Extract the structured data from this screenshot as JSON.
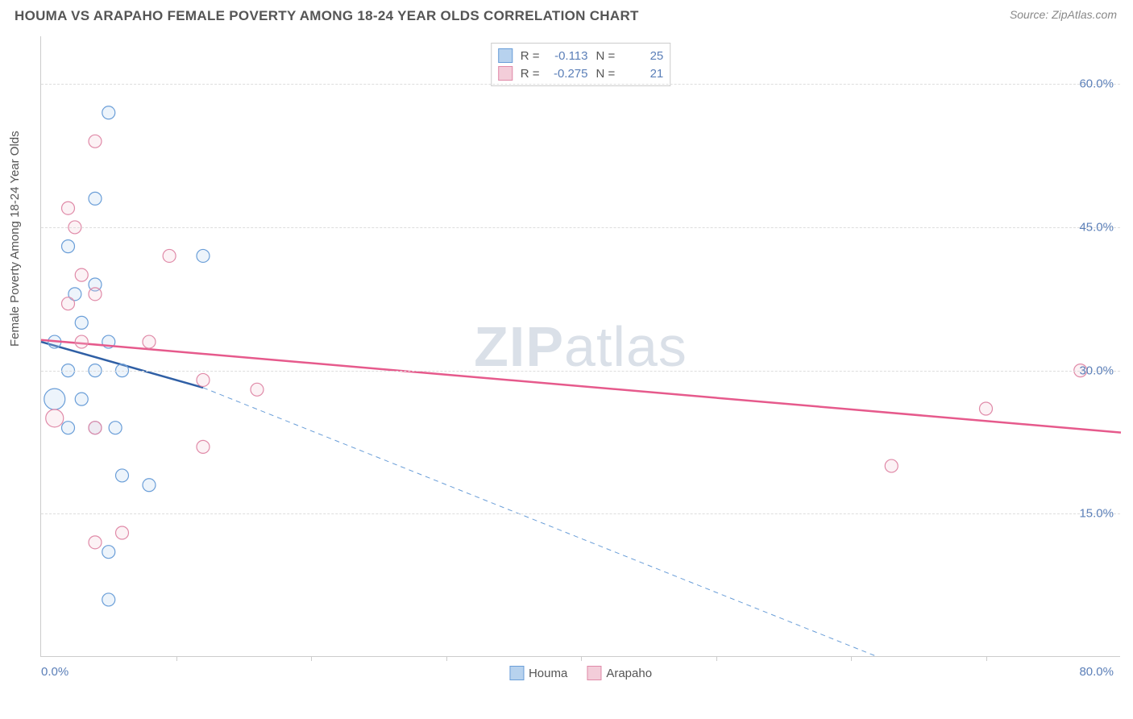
{
  "title": "HOUMA VS ARAPAHO FEMALE POVERTY AMONG 18-24 YEAR OLDS CORRELATION CHART",
  "source": "Source: ZipAtlas.com",
  "watermark_bold": "ZIP",
  "watermark_light": "atlas",
  "ylabel": "Female Poverty Among 18-24 Year Olds",
  "chart": {
    "type": "scatter",
    "xlim": [
      0,
      80
    ],
    "ylim": [
      0,
      65
    ],
    "x_start_label": "0.0%",
    "x_end_label": "80.0%",
    "x_tick_positions": [
      10,
      20,
      30,
      40,
      50,
      60,
      70
    ],
    "y_ticks": [
      15.0,
      30.0,
      45.0,
      60.0
    ],
    "y_tick_labels": [
      "15.0%",
      "30.0%",
      "45.0%",
      "60.0%"
    ],
    "y_grid_label_fontsize": 15,
    "label_fontsize": 15,
    "background_color": "#ffffff",
    "grid_color": "#dddddd",
    "axis_color": "#cccccc",
    "tick_color": "#5b7fb8",
    "marker_radius": 8,
    "marker_stroke_width": 1.2,
    "marker_fill_opacity": 0.25,
    "series": [
      {
        "name": "Houma",
        "color_stroke": "#6a9ed8",
        "color_fill": "#b7d2ee",
        "R": "-0.113",
        "N": "25",
        "trend_solid": {
          "x1": 0,
          "y1": 33.0,
          "x2": 12,
          "y2": 28.2,
          "width": 2.5,
          "color": "#2f5fa5"
        },
        "trend_dashed": {
          "x1": 12,
          "y1": 28.2,
          "x2": 62,
          "y2": 0,
          "width": 1,
          "color": "#6a9ed8",
          "dash": "6,5"
        },
        "points": [
          {
            "x": 5,
            "y": 57,
            "r": 8
          },
          {
            "x": 4,
            "y": 48,
            "r": 8
          },
          {
            "x": 2,
            "y": 43,
            "r": 8
          },
          {
            "x": 12,
            "y": 42,
            "r": 8
          },
          {
            "x": 4,
            "y": 39,
            "r": 8
          },
          {
            "x": 2.5,
            "y": 38,
            "r": 8
          },
          {
            "x": 3,
            "y": 35,
            "r": 8
          },
          {
            "x": 1,
            "y": 33,
            "r": 8
          },
          {
            "x": 5,
            "y": 33,
            "r": 8
          },
          {
            "x": 2,
            "y": 30,
            "r": 8
          },
          {
            "x": 4,
            "y": 30,
            "r": 8
          },
          {
            "x": 6,
            "y": 30,
            "r": 8
          },
          {
            "x": 1,
            "y": 27,
            "r": 13
          },
          {
            "x": 3,
            "y": 27,
            "r": 8
          },
          {
            "x": 2,
            "y": 24,
            "r": 8
          },
          {
            "x": 4,
            "y": 24,
            "r": 8
          },
          {
            "x": 5.5,
            "y": 24,
            "r": 8
          },
          {
            "x": 6,
            "y": 19,
            "r": 8
          },
          {
            "x": 8,
            "y": 18,
            "r": 8
          },
          {
            "x": 5,
            "y": 11,
            "r": 8
          },
          {
            "x": 5,
            "y": 6,
            "r": 8
          }
        ]
      },
      {
        "name": "Arapaho",
        "color_stroke": "#e08aa8",
        "color_fill": "#f3cdd9",
        "R": "-0.275",
        "N": "21",
        "trend_solid": {
          "x1": 0,
          "y1": 33.2,
          "x2": 80,
          "y2": 23.5,
          "width": 2.5,
          "color": "#e65a8c"
        },
        "trend_dashed": null,
        "points": [
          {
            "x": 4,
            "y": 54,
            "r": 8
          },
          {
            "x": 2,
            "y": 47,
            "r": 8
          },
          {
            "x": 2.5,
            "y": 45,
            "r": 8
          },
          {
            "x": 9.5,
            "y": 42,
            "r": 8
          },
          {
            "x": 3,
            "y": 40,
            "r": 8
          },
          {
            "x": 4,
            "y": 38,
            "r": 8
          },
          {
            "x": 2,
            "y": 37,
            "r": 8
          },
          {
            "x": 3,
            "y": 33,
            "r": 8
          },
          {
            "x": 8,
            "y": 33,
            "r": 8
          },
          {
            "x": 12,
            "y": 29,
            "r": 8
          },
          {
            "x": 16,
            "y": 28,
            "r": 8
          },
          {
            "x": 1,
            "y": 25,
            "r": 11
          },
          {
            "x": 4,
            "y": 24,
            "r": 8
          },
          {
            "x": 12,
            "y": 22,
            "r": 8
          },
          {
            "x": 77,
            "y": 30,
            "r": 8
          },
          {
            "x": 70,
            "y": 26,
            "r": 8
          },
          {
            "x": 63,
            "y": 20,
            "r": 8
          },
          {
            "x": 6,
            "y": 13,
            "r": 8
          },
          {
            "x": 4,
            "y": 12,
            "r": 8
          }
        ]
      }
    ]
  },
  "legend_stats": {
    "r_label": "R =",
    "n_label": "N ="
  },
  "legend_series_label": {
    "a": "Houma",
    "b": "Arapaho"
  }
}
